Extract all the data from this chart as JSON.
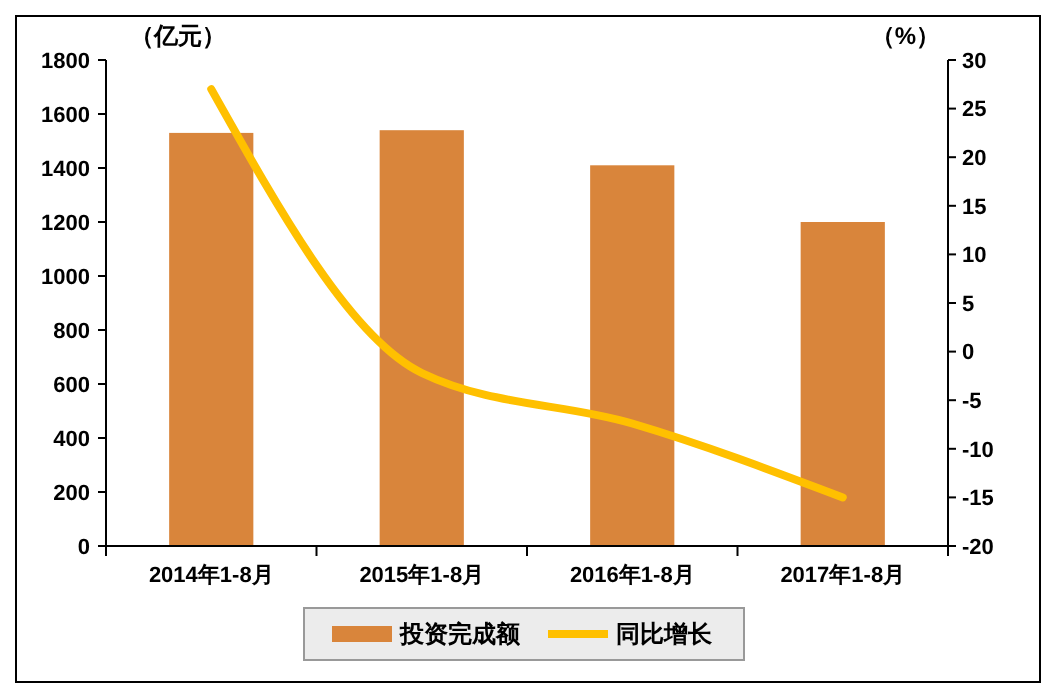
{
  "chart_data": {
    "type": "bar",
    "ylabel": "（亿元）",
    "y2label": "（%）",
    "categories": [
      "2014年1-8月",
      "2015年1-8月",
      "2016年1-8月",
      "2017年1-8月"
    ],
    "series": [
      {
        "name": "投资完成额",
        "color": "#d9853b",
        "values": [
          1530,
          1540,
          1410,
          1200
        ]
      },
      {
        "name": "同比增长",
        "type": "line",
        "axis": "y2",
        "color": "#ffc000",
        "values": [
          27,
          -2.2,
          -7.4,
          -15
        ],
        "marker": "none"
      }
    ],
    "ylim": [
      0,
      1800
    ],
    "yticks": [
      0,
      200,
      400,
      600,
      800,
      1000,
      1200,
      1400,
      1600,
      1800
    ],
    "y2lim": [
      -20,
      30
    ],
    "y2ticks": [
      -20,
      -15,
      -10,
      -5,
      0,
      5,
      10,
      15,
      20,
      25,
      30
    ],
    "grid": false,
    "legend": "bottom"
  }
}
